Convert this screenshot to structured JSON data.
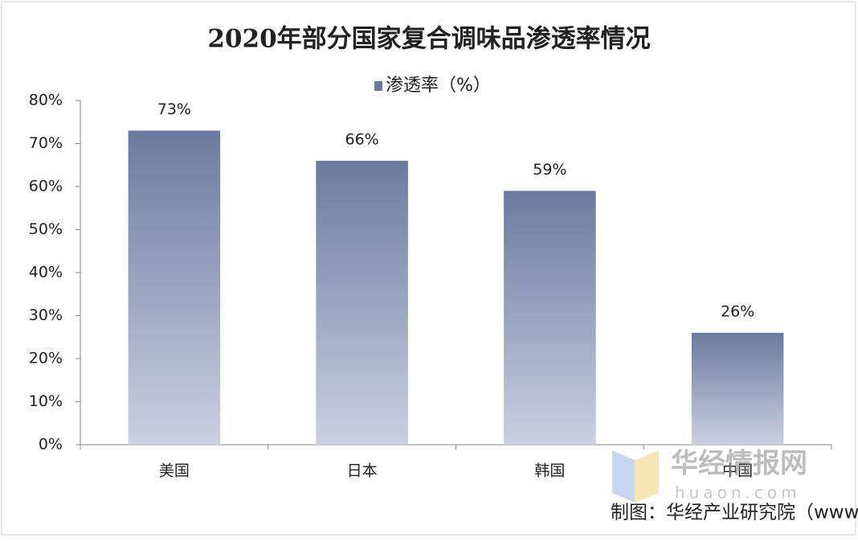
{
  "chart_data": {
    "type": "bar",
    "title": "2020年部分国家复合调味品渗透率情况",
    "categories": [
      "美国",
      "日本",
      "韩国",
      "中国"
    ],
    "series": [
      {
        "name": "渗透率（%）",
        "color": "#6b7a9f",
        "values": [
          73,
          66,
          59,
          26
        ],
        "value_labels": [
          "73%",
          "66%",
          "59%",
          "26%"
        ]
      }
    ],
    "ylim": [
      0,
      80
    ],
    "yticks": [
      {
        "value": 0,
        "label": "0%"
      },
      {
        "value": 10,
        "label": "10%"
      },
      {
        "value": 20,
        "label": "20%"
      },
      {
        "value": 30,
        "label": "30%"
      },
      {
        "value": 40,
        "label": "40%"
      },
      {
        "value": 50,
        "label": "50%"
      },
      {
        "value": 60,
        "label": "60%"
      },
      {
        "value": 70,
        "label": "70%"
      },
      {
        "value": 80,
        "label": "80%"
      }
    ],
    "grid": false,
    "legend": "top",
    "source": "制图：华经产业研究院（www.huaon.com）",
    "watermark": [
      "华经情报网",
      "huaon.com"
    ]
  }
}
